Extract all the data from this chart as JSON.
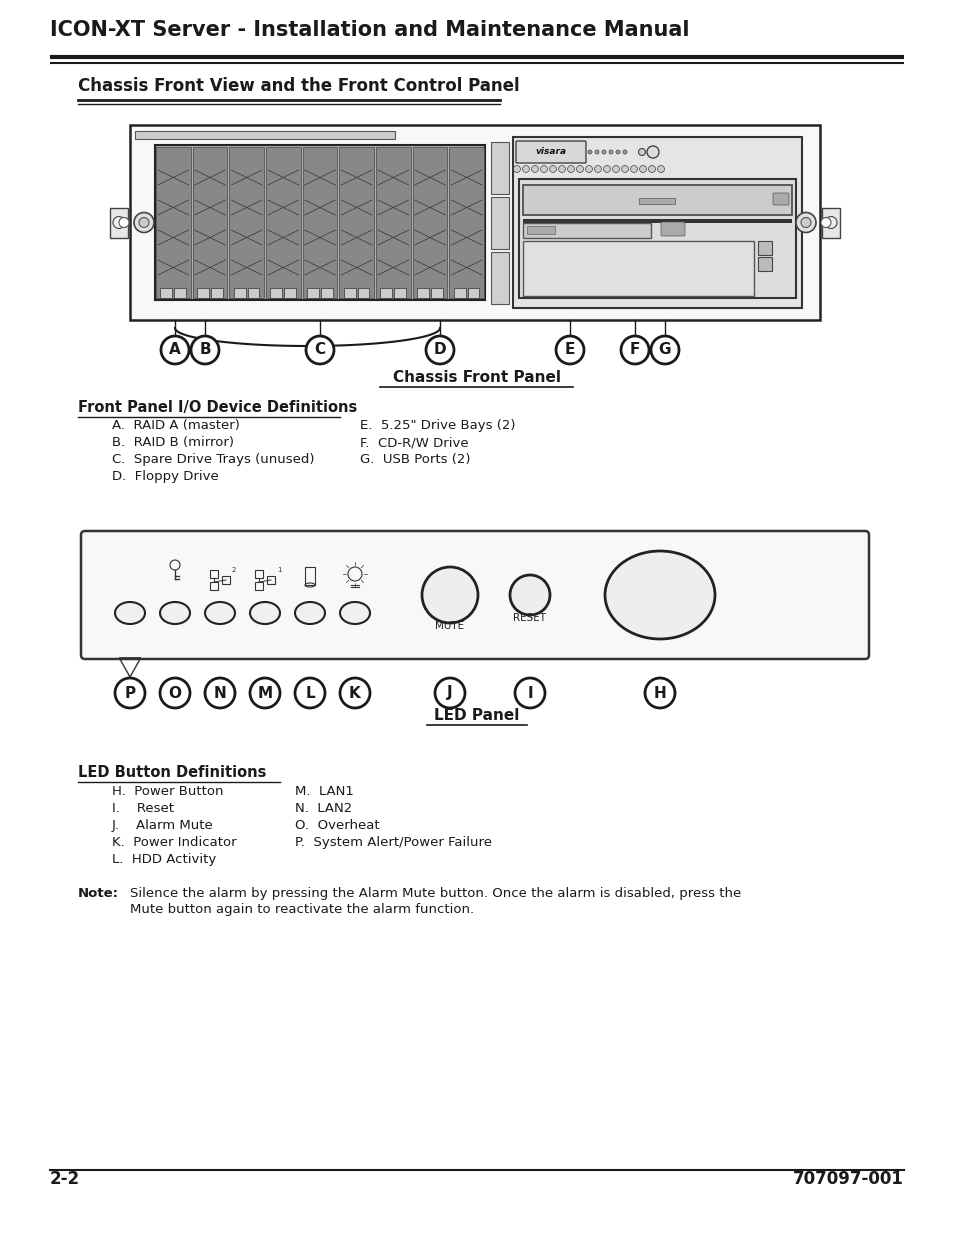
{
  "title": "ICON-XT Server - Installation and Maintenance Manual",
  "section_title": "Chassis Front View and the Front Control Panel",
  "chassis_panel_label": "Chassis Front Panel",
  "led_panel_label": "LED Panel",
  "fp_io_title": "Front Panel I/O Device Definitions",
  "fp_io_items_left": [
    "A.  RAID A (master)",
    "B.  RAID B (mirror)",
    "C.  Spare Drive Trays (unused)",
    "D.  Floppy Drive"
  ],
  "fp_io_items_right": [
    "E.  5.25\" Drive Bays (2)",
    "F.  CD-R/W Drive",
    "G.  USB Ports (2)"
  ],
  "led_title": "LED Button Definitions",
  "led_items_left": [
    "H.  Power Button",
    "I.    Reset",
    "J.    Alarm Mute",
    "K.  Power Indicator",
    "L.  HDD Activity"
  ],
  "led_items_right": [
    "M.  LAN1",
    "N.  LAN2",
    "O.  Overheat",
    "P.  System Alert/Power Failure"
  ],
  "note_label": "Note:",
  "note_line1": "Silence the alarm by pressing the Alarm Mute button. Once the alarm is disabled, press the",
  "note_line2": "Mute button again to reactivate the alarm function.",
  "footer_left": "2-2",
  "footer_right": "707097-001",
  "bg_color": "#ffffff",
  "text_color": "#1a1a1a"
}
